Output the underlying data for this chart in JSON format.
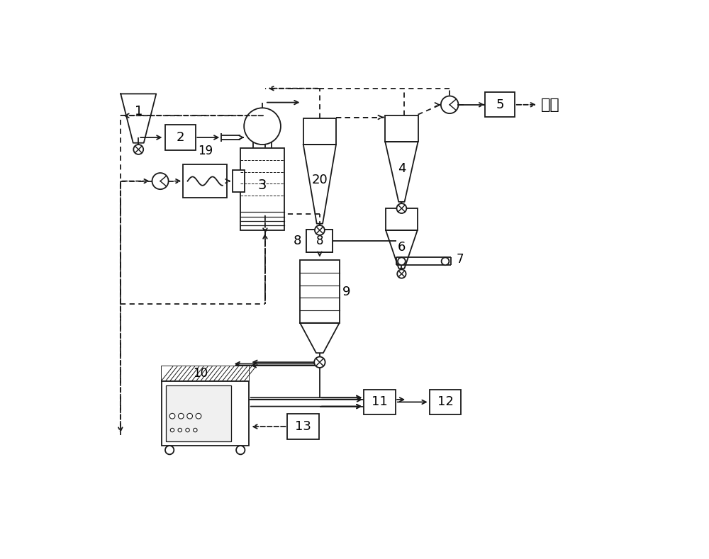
{
  "bg_color": "#ffffff",
  "lc": "#1a1a1a",
  "lw": 1.3,
  "figsize": [
    10.0,
    7.89
  ],
  "dpi": 100,
  "discharge_text": "排放"
}
